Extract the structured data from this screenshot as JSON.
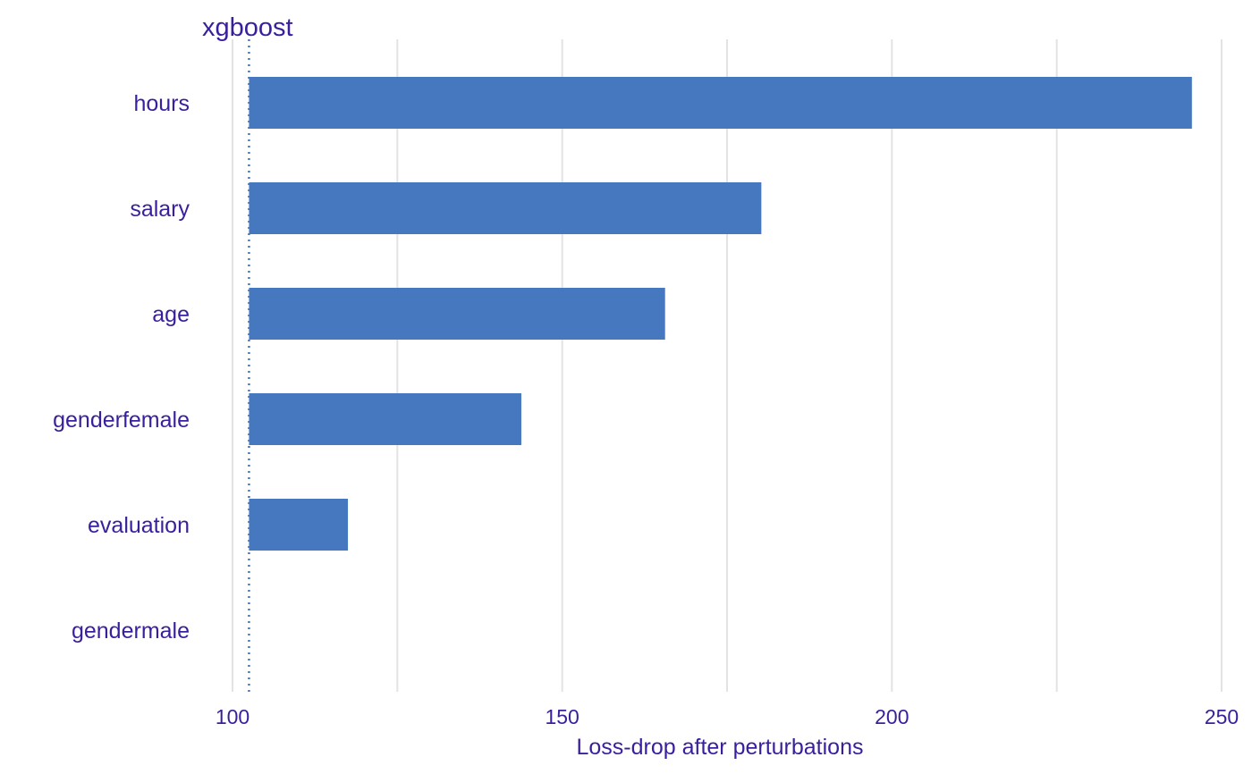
{
  "colors": {
    "bar": "#4578bf",
    "text": "#3a1f9c",
    "grid": "#e3e3e3",
    "baseline": "#4578bf"
  },
  "chart_data": {
    "type": "bar",
    "orientation": "horizontal",
    "title": "xgboost",
    "xlabel": "Loss-drop after perturbations",
    "ylabel": "",
    "xlim": [
      100,
      250
    ],
    "xticks": [
      100,
      150,
      200,
      250
    ],
    "baseline": 102.5,
    "grid": true,
    "categories": [
      "hours",
      "salary",
      "age",
      "genderfemale",
      "evaluation",
      "gendermale"
    ],
    "values": [
      245.5,
      180.2,
      165.6,
      143.8,
      117.5,
      102.5
    ]
  }
}
